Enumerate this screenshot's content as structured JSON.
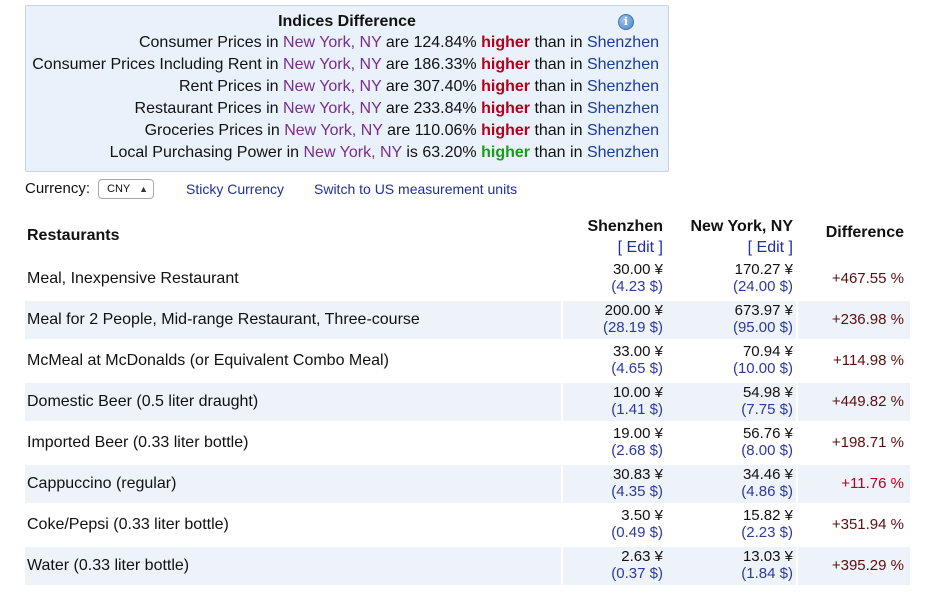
{
  "indices": {
    "title": "Indices Difference",
    "info_icon": "info-icon",
    "lines": [
      {
        "pre": "Consumer Prices in",
        "city1": "New York, NY",
        "mid": "are 124.84%",
        "word": "higher",
        "post": "than in",
        "city2": "Shenzhen",
        "color": "#b3001b"
      },
      {
        "pre": "Consumer Prices Including Rent in",
        "city1": "New York, NY",
        "mid": "are 186.33%",
        "word": "higher",
        "post": "than in",
        "city2": "Shenzhen",
        "color": "#b3001b"
      },
      {
        "pre": "Rent Prices in",
        "city1": "New York, NY",
        "mid": "are 307.40%",
        "word": "higher",
        "post": "than in",
        "city2": "Shenzhen",
        "color": "#b3001b"
      },
      {
        "pre": "Restaurant Prices in",
        "city1": "New York, NY",
        "mid": "are 233.84%",
        "word": "higher",
        "post": "than in",
        "city2": "Shenzhen",
        "color": "#b3001b"
      },
      {
        "pre": "Groceries Prices in",
        "city1": "New York, NY",
        "mid": "are 110.06%",
        "word": "higher",
        "post": "than in",
        "city2": "Shenzhen",
        "color": "#b3001b"
      },
      {
        "pre": "Local Purchasing Power in",
        "city1": "New York, NY",
        "mid": "is 63.20%",
        "word": "higher",
        "post": "than in",
        "city2": "Shenzhen",
        "color": "#1a9a1a"
      }
    ]
  },
  "controls": {
    "currency_label": "Currency:",
    "currency_value": "CNY",
    "sticky_currency": "Sticky Currency",
    "switch_units": "Switch to US measurement units"
  },
  "table": {
    "section": "Restaurants",
    "col1": "Shenzhen",
    "col2": "New York, NY",
    "col3": "Difference",
    "edit": "[ Edit ]",
    "rows": [
      {
        "name": "Meal, Inexpensive Restaurant",
        "sz": "30.00 ¥",
        "sz_usd": "(4.23 $)",
        "ny": "170.27 ¥",
        "ny_usd": "(24.00 $)",
        "diff": "+467.55 %"
      },
      {
        "name": "Meal for 2 People, Mid-range Restaurant, Three-course",
        "sz": "200.00 ¥",
        "sz_usd": "(28.19 $)",
        "ny": "673.97 ¥",
        "ny_usd": "(95.00 $)",
        "diff": "+236.98 %"
      },
      {
        "name": "McMeal at McDonalds (or Equivalent Combo Meal)",
        "sz": "33.00 ¥",
        "sz_usd": "(4.65 $)",
        "ny": "70.94 ¥",
        "ny_usd": "(10.00 $)",
        "diff": "+114.98 %"
      },
      {
        "name": "Domestic Beer (0.5 liter draught)",
        "sz": "10.00 ¥",
        "sz_usd": "(1.41 $)",
        "ny": "54.98 ¥",
        "ny_usd": "(7.75 $)",
        "diff": "+449.82 %"
      },
      {
        "name": "Imported Beer (0.33 liter bottle)",
        "sz": "19.00 ¥",
        "sz_usd": "(2.68 $)",
        "ny": "56.76 ¥",
        "ny_usd": "(8.00 $)",
        "diff": "+198.71 %"
      },
      {
        "name": "Cappuccino (regular)",
        "sz": "30.83 ¥",
        "sz_usd": "(4.35 $)",
        "ny": "34.46 ¥",
        "ny_usd": "(4.86 $)",
        "diff": "+11.76 %"
      },
      {
        "name": "Coke/Pepsi (0.33 liter bottle)",
        "sz": "3.50 ¥",
        "sz_usd": "(0.49 $)",
        "ny": "15.82 ¥",
        "ny_usd": "(2.23 $)",
        "diff": "+351.94 %"
      },
      {
        "name": "Water (0.33 liter bottle)",
        "sz": "2.63 ¥",
        "sz_usd": "(0.37 $)",
        "ny": "13.03 ¥",
        "ny_usd": "(1.84 $)",
        "diff": "+395.29 %"
      }
    ]
  }
}
